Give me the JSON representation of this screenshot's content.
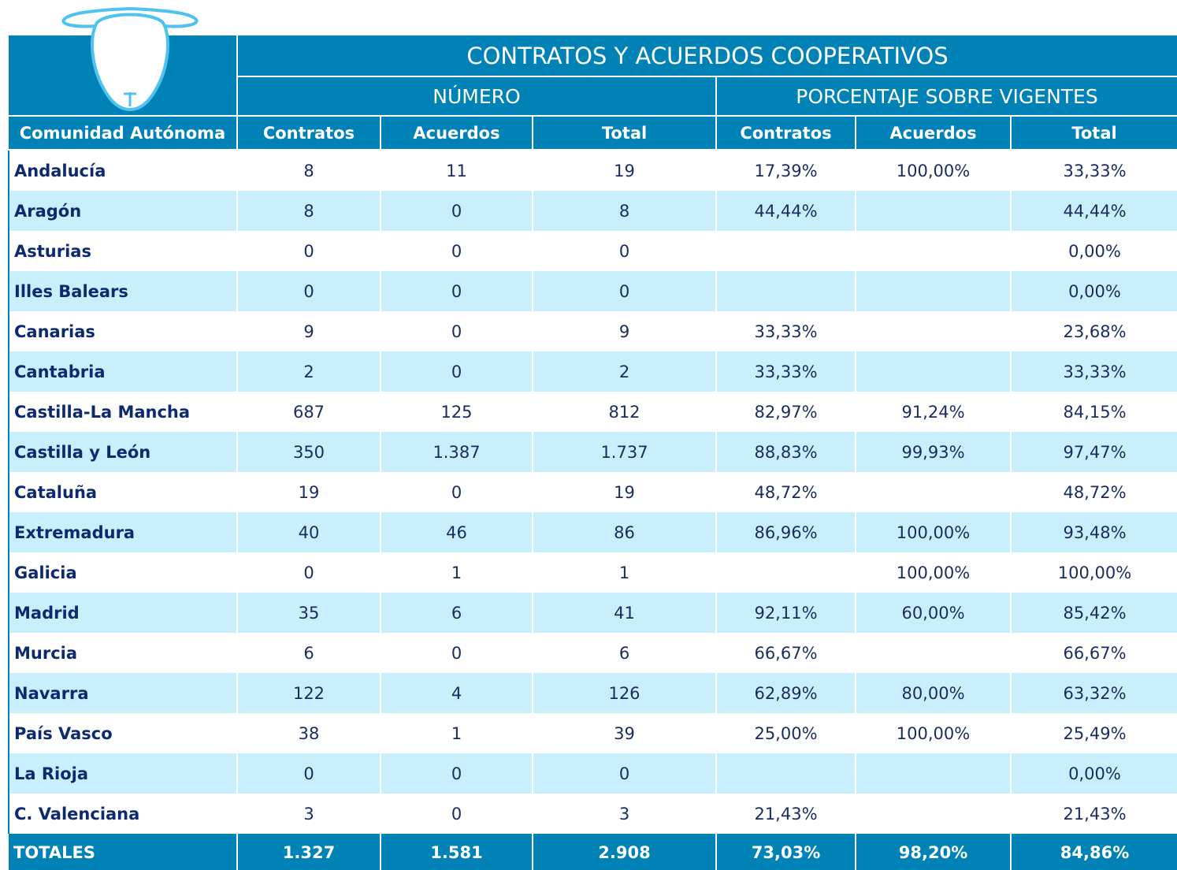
{
  "table": {
    "title": "CONTRATOS Y ACUERDOS COOPERATIVOS",
    "groups": [
      "NÚMERO",
      "PORCENTAJE SOBRE VIGENTES"
    ],
    "columns": [
      "Comunidad Autónoma",
      "Contratos",
      "Acuerdos",
      "Total",
      "Contratos",
      "Acuerdos",
      "Total"
    ],
    "rows": [
      [
        "Andalucía",
        "8",
        "11",
        "19",
        "17,39%",
        "100,00%",
        "33,33%"
      ],
      [
        "Aragón",
        "8",
        "0",
        "8",
        "44,44%",
        null,
        "44,44%"
      ],
      [
        "Asturias",
        "0",
        "0",
        "0",
        null,
        null,
        "0,00%"
      ],
      [
        "Illes Balears",
        "0",
        "0",
        "0",
        null,
        null,
        "0,00%"
      ],
      [
        "Canarias",
        "9",
        "0",
        "9",
        "33,33%",
        null,
        "23,68%"
      ],
      [
        "Cantabria",
        "2",
        "0",
        "2",
        "33,33%",
        null,
        "33,33%"
      ],
      [
        "Castilla-La Mancha",
        "687",
        "125",
        "812",
        "82,97%",
        "91,24%",
        "84,15%"
      ],
      [
        "Castilla y León",
        "350",
        "1.387",
        "1.737",
        "88,83%",
        "99,93%",
        "97,47%"
      ],
      [
        "Cataluña",
        "19",
        "0",
        "19",
        "48,72%",
        null,
        "48,72%"
      ],
      [
        "Extremadura",
        "40",
        "46",
        "86",
        "86,96%",
        "100,00%",
        "93,48%"
      ],
      [
        "Galicia",
        "0",
        "1",
        "1",
        null,
        "100,00%",
        "100,00%"
      ],
      [
        "Madrid",
        "35",
        "6",
        "41",
        "92,11%",
        "60,00%",
        "85,42%"
      ],
      [
        "Murcia",
        "6",
        "0",
        "6",
        "66,67%",
        null,
        "66,67%"
      ],
      [
        "Navarra",
        "122",
        "4",
        "126",
        "62,89%",
        "80,00%",
        "63,32%"
      ],
      [
        "País Vasco",
        "38",
        "1",
        "39",
        "25,00%",
        "100,00%",
        "25,49%"
      ],
      [
        "La Rioja",
        "0",
        "0",
        "0",
        null,
        null,
        "0,00%"
      ],
      [
        "C. Valenciana",
        "3",
        "0",
        "3",
        "21,43%",
        null,
        "21,43%"
      ]
    ],
    "totals": [
      "TOTALES",
      "1.327",
      "1.581",
      "2.908",
      "73,03%",
      "98,20%",
      "84,86%"
    ]
  }
}
